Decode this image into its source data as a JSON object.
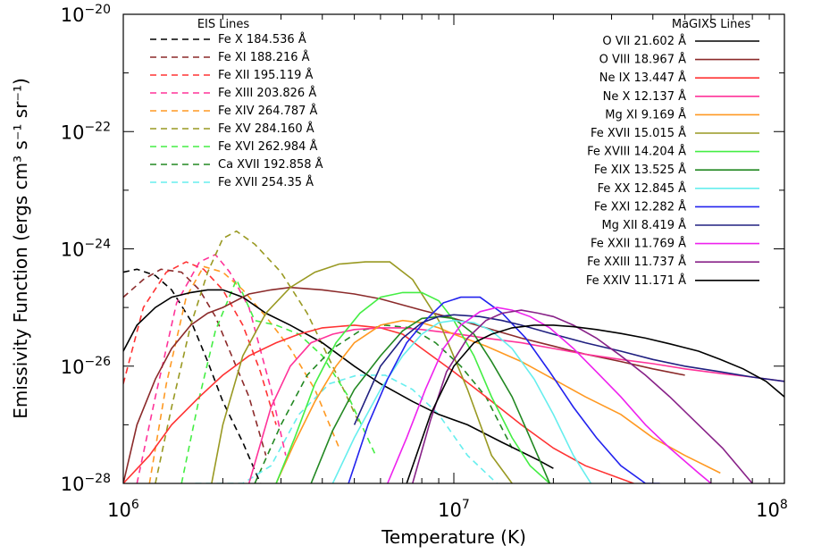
{
  "chart_data": {
    "type": "line",
    "title": "",
    "xlabel": "Temperature (K)",
    "ylabel": "Emissivity Function (ergs cm³ s⁻¹ sr⁻¹)",
    "xscale": "log",
    "yscale": "log",
    "xlim": [
      1000000,
      100000000
    ],
    "ylim": [
      1e-28,
      1e-20
    ],
    "x_ticks": [
      {
        "value": 1000000,
        "base": "10",
        "exp": "6"
      },
      {
        "value": 10000000,
        "base": "10",
        "exp": "7"
      },
      {
        "value": 100000000,
        "base": "10",
        "exp": "8"
      }
    ],
    "y_ticks": [
      {
        "value": 1e-28,
        "base": "10",
        "exp": "−28"
      },
      {
        "value": 1e-26,
        "base": "10",
        "exp": "−26"
      },
      {
        "value": 1e-24,
        "base": "10",
        "exp": "−24"
      },
      {
        "value": 1e-22,
        "base": "10",
        "exp": "−22"
      },
      {
        "value": 1e-20,
        "base": "10",
        "exp": "−20"
      }
    ],
    "grid": false,
    "legends": [
      {
        "title": "EIS Lines",
        "placement": "top-left",
        "style": "dashed"
      },
      {
        "title": "MaGIXS Lines",
        "placement": "top-right",
        "style": "solid"
      }
    ],
    "series": [
      {
        "name": "Fe X 184.536 Å",
        "group": 0,
        "color": "#000000",
        "dash": true,
        "x": [
          1000000,
          1100000,
          1250000,
          1400000,
          1600000,
          1800000,
          2000000,
          2300000,
          2600000
        ],
        "y": [
          4e-25,
          4.5e-25,
          3.5e-25,
          2e-25,
          6e-26,
          1.2e-26,
          2.5e-27,
          5e-28,
          1e-28
        ]
      },
      {
        "name": "Fe XI 188.216 Å",
        "group": 0,
        "color": "#8b2a2a",
        "dash": true,
        "x": [
          1000000,
          1150000,
          1300000,
          1500000,
          1700000,
          1900000,
          2100000,
          2400000,
          2700000
        ],
        "y": [
          1.5e-25,
          3e-25,
          4.5e-25,
          4e-25,
          2e-25,
          7e-26,
          1.8e-26,
          3e-27,
          3e-28
        ]
      },
      {
        "name": "Fe XII 195.119 Å",
        "group": 0,
        "color": "#ff3333",
        "dash": true,
        "x": [
          1000000,
          1150000,
          1350000,
          1550000,
          1750000,
          2000000,
          2300000,
          2600000,
          2900000
        ],
        "y": [
          5e-27,
          1e-25,
          4e-25,
          6e-25,
          4.5e-25,
          2e-25,
          5e-26,
          8e-27,
          1e-27
        ]
      },
      {
        "name": "Fe XIII 203.826 Å",
        "group": 0,
        "color": "#ff3399",
        "dash": true,
        "x": [
          1100000,
          1250000,
          1450000,
          1700000,
          1900000,
          2100000,
          2400000,
          2800000,
          3100000
        ],
        "y": [
          1e-28,
          3e-27,
          1.2e-25,
          6e-25,
          8e-25,
          4e-25,
          1e-25,
          4e-27,
          3e-28
        ]
      },
      {
        "name": "Fe XIV 264.787 Å",
        "group": 0,
        "color": "#ff9922",
        "dash": true,
        "x": [
          1200000,
          1350000,
          1550000,
          1750000,
          2000000,
          2300000,
          2700000,
          3200000,
          3800000,
          4500000
        ],
        "y": [
          1e-28,
          5e-27,
          1.5e-25,
          5e-25,
          4e-25,
          2e-25,
          7e-26,
          2e-26,
          4e-27,
          4e-28
        ]
      },
      {
        "name": "Fe XV 284.160 Å",
        "group": 0,
        "color": "#999922",
        "dash": true,
        "x": [
          1250000,
          1400000,
          1600000,
          1800000,
          2000000,
          2200000,
          2500000,
          3000000,
          3600000,
          4300000,
          5200000
        ],
        "y": [
          1e-28,
          2e-27,
          5e-26,
          4e-25,
          1.5e-24,
          2e-24,
          1.2e-24,
          4e-25,
          8e-26,
          1e-26,
          1e-27
        ]
      },
      {
        "name": "Fe XVI 262.984 Å",
        "group": 0,
        "color": "#44ee44",
        "dash": true,
        "x": [
          1500000,
          1700000,
          1900000,
          2200000,
          2500000,
          2900000,
          3400000,
          4000000,
          4800000,
          5800000
        ],
        "y": [
          1e-28,
          3e-27,
          4e-26,
          3e-25,
          6e-26,
          5e-26,
          3.5e-26,
          1.5e-26,
          3e-27,
          3e-28
        ]
      },
      {
        "name": "Ca XVII 192.858 Å",
        "group": 0,
        "color": "#228822",
        "dash": true,
        "x": [
          2500000,
          3000000,
          3600000,
          4300000,
          5200000,
          6200000,
          7400000,
          8800000,
          10500000,
          12500000,
          15000000
        ],
        "y": [
          1e-28,
          1e-27,
          7e-27,
          2e-26,
          4e-26,
          5e-26,
          4.5e-26,
          2.5e-26,
          1e-26,
          3e-27,
          4e-28
        ]
      },
      {
        "name": "Fe XVII 254.35 Å",
        "group": 0,
        "color": "#66eeee",
        "dash": true,
        "x": [
          1650000,
          1900000,
          2300000,
          2800000,
          3400000,
          4200000,
          5100000,
          6200000,
          7500000,
          9000000,
          11000000,
          13500000
        ],
        "y": [
          1e-28,
          1e-28,
          1e-28,
          2e-28,
          1.5e-27,
          5e-27,
          7e-27,
          7e-27,
          4e-27,
          1.5e-27,
          3e-28,
          1e-28
        ]
      },
      {
        "name": "O VII 21.602 Å",
        "group": 1,
        "color": "#000000",
        "dash": false,
        "x": [
          1000000,
          1100000,
          1250000,
          1400000,
          1600000,
          1800000,
          2000000,
          2300000,
          2700000,
          3200000,
          4000000,
          5000000,
          6000000,
          7500000,
          9000000,
          11000000,
          14000000,
          18000000,
          20000000
        ],
        "y": [
          1.8e-26,
          5e-26,
          1e-25,
          1.5e-25,
          1.8e-25,
          2e-25,
          2e-25,
          1.5e-25,
          8e-26,
          5e-26,
          2.5e-26,
          1e-26,
          5e-27,
          2.5e-27,
          1.5e-27,
          1e-27,
          5e-28,
          2.5e-28,
          1.8e-28
        ]
      },
      {
        "name": "O VIII 18.967 Å",
        "group": 1,
        "color": "#8b2a2a",
        "dash": false,
        "x": [
          1000000,
          1100000,
          1250000,
          1400000,
          1600000,
          1800000,
          2000000,
          2400000,
          2800000,
          3200000,
          4000000,
          5000000,
          6000000,
          8000000,
          10000000,
          12500000,
          16000000,
          20000000,
          25000000,
          32000000,
          40000000,
          50000000
        ],
        "y": [
          1e-28,
          1e-27,
          6e-27,
          2e-26,
          5e-26,
          8e-26,
          1e-25,
          1.7e-25,
          2e-25,
          2.2e-25,
          2e-25,
          1.7e-25,
          1.4e-25,
          9e-26,
          6.5e-26,
          4.5e-26,
          3e-26,
          2.2e-26,
          1.6e-26,
          1.2e-26,
          9e-27,
          7e-27
        ]
      },
      {
        "name": "Ne IX 13.447 Å",
        "group": 1,
        "color": "#ff3333",
        "dash": false,
        "x": [
          1000000,
          1200000,
          1400000,
          1700000,
          2000000,
          2400000,
          2900000,
          3400000,
          4000000,
          5000000,
          6000000,
          7000000,
          8000000,
          10000000,
          12500000,
          16000000,
          20000000,
          25000000,
          35000000
        ],
        "y": [
          1e-28,
          3e-28,
          1e-27,
          3e-27,
          7e-27,
          1.5e-26,
          2.5e-26,
          3.5e-26,
          4.5e-26,
          5e-26,
          4.5e-26,
          3.5e-26,
          2e-26,
          8e-27,
          3e-27,
          1e-27,
          4e-28,
          2e-28,
          1e-28
        ]
      },
      {
        "name": "Ne X 12.137 Å",
        "group": 1,
        "color": "#ff3399",
        "dash": false,
        "x": [
          2400000,
          2800000,
          3200000,
          3700000,
          4300000,
          5000000,
          6000000,
          7000000,
          8000000,
          10000000,
          12500000,
          16000000,
          20000000,
          25000000,
          32000000,
          40000000,
          50000000,
          64000000,
          80000000,
          100000000
        ],
        "y": [
          1e-28,
          2e-27,
          1e-26,
          2.5e-26,
          3.5e-26,
          4.2e-26,
          4.5e-26,
          4.5e-26,
          4.2e-26,
          3.6e-26,
          3e-26,
          2.5e-26,
          2e-26,
          1.6e-26,
          1.3e-26,
          1.1e-26,
          9e-27,
          7.5e-27,
          6.5e-27,
          5.5e-27
        ]
      },
      {
        "name": "Mg XI 9.169 Å",
        "group": 1,
        "color": "#ff9922",
        "dash": false,
        "x": [
          2900000,
          3300000,
          3800000,
          4400000,
          5000000,
          6000000,
          7000000,
          8000000,
          9000000,
          10000000,
          12500000,
          16000000,
          20000000,
          25000000,
          32000000,
          40000000,
          50000000,
          64000000
        ],
        "y": [
          1e-28,
          5e-28,
          2.5e-27,
          1e-26,
          2.5e-26,
          5e-26,
          6e-26,
          5.5e-26,
          4.5e-26,
          3.5e-26,
          2.2e-26,
          1.2e-26,
          6e-27,
          3e-27,
          1.5e-27,
          6e-28,
          3e-28,
          1.5e-28
        ]
      },
      {
        "name": "Fe XVII 15.015 Å",
        "group": 1,
        "color": "#999922",
        "dash": false,
        "x": [
          1850000,
          2000000,
          2300000,
          2700000,
          3200000,
          3800000,
          4500000,
          5400000,
          6400000,
          7500000,
          9000000,
          11000000,
          13000000,
          15000000
        ],
        "y": [
          1e-28,
          1e-27,
          1.5e-26,
          8e-26,
          2.2e-25,
          4e-25,
          5.5e-25,
          6e-25,
          6e-25,
          3e-25,
          6e-26,
          4e-27,
          3e-28,
          1e-28
        ]
      },
      {
        "name": "Fe XVIII 14.204 Å",
        "group": 1,
        "color": "#44ee44",
        "dash": false,
        "x": [
          2900000,
          3300000,
          3800000,
          4400000,
          5200000,
          6000000,
          7000000,
          8000000,
          9000000,
          10000000,
          11500000,
          13000000,
          15000000,
          17000000,
          19500000
        ],
        "y": [
          1e-28,
          6e-28,
          5e-27,
          2.5e-26,
          8e-26,
          1.5e-25,
          1.8e-25,
          1.8e-25,
          1.3e-25,
          6e-26,
          1.5e-26,
          3e-27,
          6e-28,
          2e-28,
          1e-28
        ]
      },
      {
        "name": "Fe XIX 13.525 Å",
        "group": 1,
        "color": "#228822",
        "dash": false,
        "x": [
          3700000,
          4300000,
          5000000,
          6000000,
          7000000,
          8000000,
          9000000,
          10000000,
          11500000,
          13000000,
          15000000,
          17000000,
          19500000
        ],
        "y": [
          1e-28,
          8e-28,
          4e-27,
          1.5e-26,
          4e-26,
          6.5e-26,
          7e-26,
          6.5e-26,
          3.5e-26,
          1.2e-26,
          3e-27,
          6e-28,
          1e-28
        ]
      },
      {
        "name": "Fe XX 12.845 Å",
        "group": 1,
        "color": "#66eeee",
        "dash": false,
        "x": [
          4300000,
          5000000,
          6000000,
          7000000,
          8000000,
          9000000,
          10000000,
          11500000,
          13000000,
          15000000,
          17500000,
          20000000,
          23000000,
          26000000
        ],
        "y": [
          1e-28,
          6e-28,
          4e-27,
          1.5e-26,
          3.5e-26,
          5.5e-26,
          6e-26,
          5.5e-26,
          4e-26,
          2e-26,
          6e-27,
          1.5e-27,
          3e-28,
          1e-28
        ]
      },
      {
        "name": "Fe XXI 12.282 Å",
        "group": 1,
        "color": "#2222ee",
        "dash": false,
        "x": [
          4800000,
          5500000,
          6300000,
          7200000,
          8200000,
          9300000,
          10500000,
          12000000,
          14000000,
          16500000,
          19500000,
          23000000,
          27000000,
          32000000,
          38000000,
          42000000
        ],
        "y": [
          1e-28,
          1e-27,
          6e-27,
          2.5e-26,
          6e-26,
          1.2e-25,
          1.5e-25,
          1.5e-25,
          8e-26,
          3e-26,
          8e-27,
          2e-27,
          6e-28,
          2e-28,
          1e-28,
          1e-28
        ]
      },
      {
        "name": "Mg XII 8.419 Å",
        "group": 1,
        "color": "#202080",
        "dash": false,
        "x": [
          5000000,
          6000000,
          7000000,
          8000000,
          9000000,
          10000000,
          12000000,
          14000000,
          16000000,
          20000000,
          25000000,
          32000000,
          40000000,
          50000000,
          64000000,
          80000000,
          100000000
        ],
        "y": [
          1e-27,
          1e-26,
          3e-26,
          5.5e-26,
          7e-26,
          7.5e-26,
          7e-26,
          6e-26,
          5e-26,
          3.5e-26,
          2.5e-26,
          1.8e-26,
          1.3e-26,
          1e-26,
          8e-27,
          6.5e-27,
          5.5e-27
        ]
      },
      {
        "name": "Fe XXII 11.769 Å",
        "group": 1,
        "color": "#ee22ee",
        "dash": false,
        "x": [
          6300000,
          7200000,
          8200000,
          9300000,
          10500000,
          12000000,
          13500000,
          15000000,
          17000000,
          19500000,
          23000000,
          27000000,
          32000000,
          38000000,
          45000000,
          55000000,
          60000000
        ],
        "y": [
          1e-28,
          6e-28,
          4e-27,
          2e-26,
          5e-26,
          8.5e-26,
          1e-25,
          9e-26,
          7e-26,
          4.5e-26,
          2e-26,
          8e-27,
          3e-27,
          1e-27,
          4e-28,
          1.5e-28,
          1e-28
        ]
      },
      {
        "name": "Fe XXIII 11.737 Å",
        "group": 1,
        "color": "#882288",
        "dash": false,
        "x": [
          7500000,
          8500000,
          9500000,
          11000000,
          12500000,
          14000000,
          16000000,
          18000000,
          20000000,
          23000000,
          27000000,
          32000000,
          38000000,
          45000000,
          55000000,
          65000000,
          80000000
        ],
        "y": [
          1e-28,
          1.2e-27,
          8e-27,
          3e-26,
          6e-26,
          8e-26,
          9e-26,
          8e-26,
          7e-26,
          5e-26,
          3e-26,
          1.5e-26,
          7e-27,
          3e-27,
          1e-27,
          4e-28,
          1e-28
        ]
      },
      {
        "name": "Fe XXIV 11.171 Å",
        "group": 1,
        "color": "#000000",
        "dash": false,
        "x": [
          7200000,
          8500000,
          10000000,
          11500000,
          13000000,
          15000000,
          17500000,
          20000000,
          23000000,
          27000000,
          32000000,
          38000000,
          45000000,
          55000000,
          64000000,
          75000000,
          88000000,
          100000000
        ],
        "y": [
          1e-28,
          1.5e-27,
          1e-26,
          2.5e-26,
          3.5e-26,
          4.5e-26,
          5e-26,
          5e-26,
          4.7e-26,
          4.2e-26,
          3.6e-26,
          3e-26,
          2.4e-26,
          1.8e-26,
          1.3e-26,
          9e-27,
          5.5e-27,
          3e-27
        ]
      }
    ]
  }
}
